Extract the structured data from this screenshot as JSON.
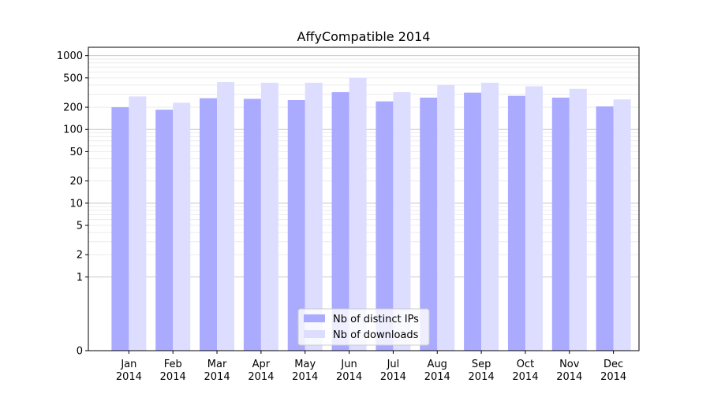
{
  "chart_data": {
    "type": "bar",
    "title": "AffyCompatible 2014",
    "xlabel": "",
    "ylabel": "",
    "yscale": "symlog",
    "ylim": [
      0,
      1300
    ],
    "yticks": [
      0,
      1,
      2,
      5,
      10,
      20,
      50,
      100,
      200,
      500,
      1000
    ],
    "grid": true,
    "legend_position": "lower-center",
    "categories": [
      {
        "month": "Jan",
        "year": "2014"
      },
      {
        "month": "Feb",
        "year": "2014"
      },
      {
        "month": "Mar",
        "year": "2014"
      },
      {
        "month": "Apr",
        "year": "2014"
      },
      {
        "month": "May",
        "year": "2014"
      },
      {
        "month": "Jun",
        "year": "2014"
      },
      {
        "month": "Jul",
        "year": "2014"
      },
      {
        "month": "Aug",
        "year": "2014"
      },
      {
        "month": "Sep",
        "year": "2014"
      },
      {
        "month": "Oct",
        "year": "2014"
      },
      {
        "month": "Nov",
        "year": "2014"
      },
      {
        "month": "Dec",
        "year": "2014"
      }
    ],
    "series": [
      {
        "name": "Nb of distinct IPs",
        "color": "#aaaaff",
        "values": [
          200,
          185,
          265,
          260,
          250,
          320,
          240,
          270,
          315,
          285,
          270,
          205
        ]
      },
      {
        "name": "Nb of downloads",
        "color": "#ddddff",
        "values": [
          280,
          230,
          440,
          430,
          430,
          500,
          320,
          400,
          430,
          385,
          355,
          255
        ]
      }
    ]
  }
}
